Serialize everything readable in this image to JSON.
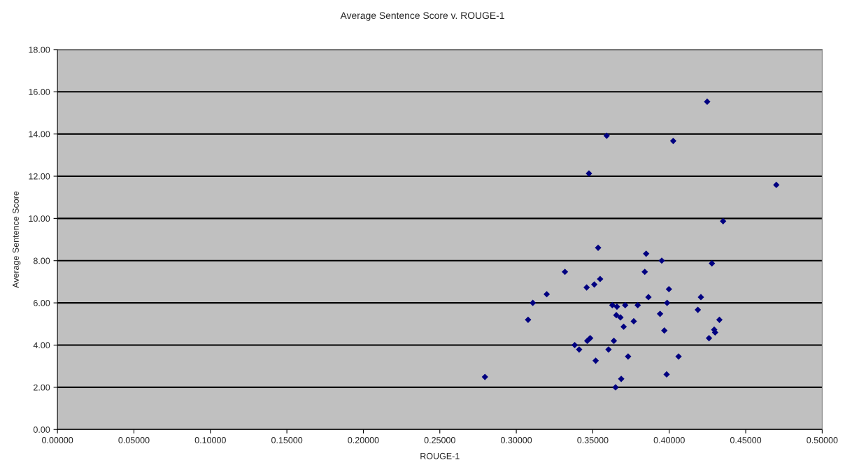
{
  "chart_data": {
    "type": "scatter",
    "title": "Average Sentence Score v. ROUGE-1",
    "xlabel": "ROUGE-1",
    "ylabel": "Average Sentence Score",
    "x": [
      0.4352,
      0.3535,
      0.3849,
      0.3951,
      0.4279,
      0.3318,
      0.384,
      0.3548,
      0.351,
      0.346,
      0.3998,
      0.3199,
      0.3864,
      0.4207,
      0.3108,
      0.3986,
      0.3628,
      0.3658,
      0.3712,
      0.3794,
      0.4187,
      0.394,
      0.3654,
      0.3681,
      0.3077,
      0.4328,
      0.3768,
      0.3702,
      0.3968,
      0.4294,
      0.43,
      0.426,
      0.3483,
      0.3464,
      0.3638,
      0.3382,
      0.3411,
      0.3603,
      0.3731,
      0.4061,
      0.3519,
      0.3983,
      0.3686,
      0.3649,
      0.2795,
      0.4248,
      0.3591,
      0.4026,
      0.3475,
      0.47
    ],
    "series": [
      {
        "color": "#000080",
        "values": [
          9.87,
          8.61,
          8.33,
          8.0,
          7.87,
          7.47,
          7.47,
          7.13,
          6.87,
          6.73,
          6.65,
          6.41,
          6.27,
          6.27,
          6.0,
          6.0,
          5.89,
          5.82,
          5.89,
          5.89,
          5.67,
          5.48,
          5.42,
          5.31,
          5.2,
          5.2,
          5.13,
          4.87,
          4.69,
          4.73,
          4.6,
          4.33,
          4.33,
          4.2,
          4.2,
          4.0,
          3.79,
          3.79,
          3.46,
          3.46,
          3.26,
          2.61,
          2.4,
          2.0,
          2.49,
          15.53,
          13.92,
          13.67,
          12.13,
          11.59
        ]
      }
    ],
    "xlim": [
      0,
      0.5
    ],
    "ylim": [
      0,
      18
    ],
    "xticks": [
      {
        "value": 0,
        "label": "0.00000"
      },
      {
        "value": 0.05,
        "label": "0.05000"
      },
      {
        "value": 0.1,
        "label": "0.10000"
      },
      {
        "value": 0.15,
        "label": "0.15000"
      },
      {
        "value": 0.2,
        "label": "0.20000"
      },
      {
        "value": 0.25,
        "label": "0.25000"
      },
      {
        "value": 0.3,
        "label": "0.30000"
      },
      {
        "value": 0.35,
        "label": "0.35000"
      },
      {
        "value": 0.4,
        "label": "0.40000"
      },
      {
        "value": 0.45,
        "label": "0.45000"
      },
      {
        "value": 0.5,
        "label": "0.50000"
      }
    ],
    "yticks": [
      {
        "value": 0,
        "label": "0.00"
      },
      {
        "value": 2,
        "label": "2.00"
      },
      {
        "value": 4,
        "label": "4.00"
      },
      {
        "value": 6,
        "label": "6.00"
      },
      {
        "value": 8,
        "label": "8.00"
      },
      {
        "value": 10,
        "label": "10.00"
      },
      {
        "value": 12,
        "label": "12.00"
      },
      {
        "value": 14,
        "label": "14.00"
      },
      {
        "value": 16,
        "label": "16.00"
      },
      {
        "value": 18,
        "label": "18.00"
      }
    ],
    "grid": "y",
    "marker": "diamond",
    "legend": false
  }
}
